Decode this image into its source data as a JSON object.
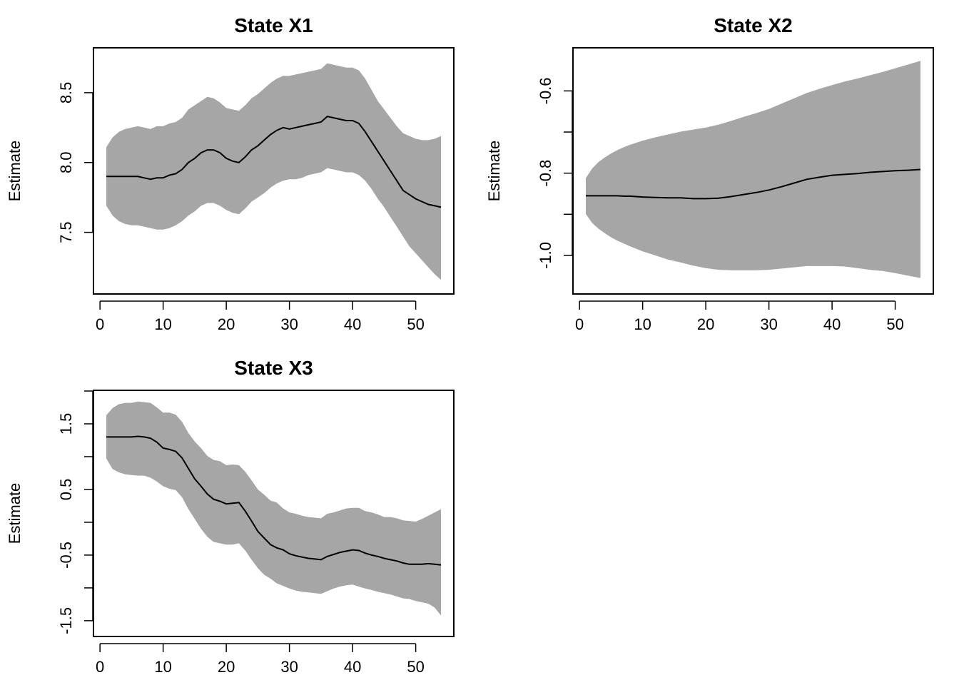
{
  "colors": {
    "band": "#a6a6a6",
    "line": "#000000",
    "frame": "#000000",
    "background": "#ffffff"
  },
  "chart_data": [
    {
      "type": "line",
      "title": "State X1",
      "xlabel": "",
      "ylabel": "Estimate",
      "xlim": [
        1,
        54
      ],
      "ylim": [
        7.12,
        8.76
      ],
      "xticks": [
        0,
        10,
        20,
        30,
        40,
        50
      ],
      "xtick_labels": [
        "0",
        "10",
        "20",
        "30",
        "40",
        "50"
      ],
      "yticks": [
        7.5,
        8.0,
        8.5
      ],
      "ytick_labels": [
        "7.5",
        "8.0",
        "8.5"
      ],
      "series": [
        {
          "kind": "band",
          "x": [
            1,
            2,
            3,
            4,
            5,
            6,
            7,
            8,
            9,
            10,
            11,
            12,
            13,
            14,
            15,
            16,
            17,
            18,
            19,
            20,
            21,
            22,
            23,
            24,
            25,
            26,
            27,
            28,
            29,
            30,
            31,
            32,
            33,
            34,
            35,
            36,
            37,
            38,
            39,
            40,
            41,
            42,
            43,
            44,
            45,
            46,
            47,
            48,
            49,
            50,
            51,
            52,
            53,
            54
          ],
          "upper": [
            8.11,
            8.18,
            8.22,
            8.24,
            8.25,
            8.26,
            8.25,
            8.24,
            8.26,
            8.26,
            8.28,
            8.29,
            8.32,
            8.38,
            8.41,
            8.44,
            8.47,
            8.46,
            8.43,
            8.39,
            8.38,
            8.37,
            8.41,
            8.46,
            8.49,
            8.53,
            8.57,
            8.6,
            8.62,
            8.62,
            8.63,
            8.64,
            8.65,
            8.66,
            8.67,
            8.71,
            8.7,
            8.69,
            8.68,
            8.68,
            8.66,
            8.6,
            8.52,
            8.44,
            8.38,
            8.32,
            8.26,
            8.21,
            8.19,
            8.17,
            8.16,
            8.16,
            8.17,
            8.19
          ],
          "lower": [
            7.69,
            7.62,
            7.58,
            7.56,
            7.55,
            7.55,
            7.54,
            7.53,
            7.52,
            7.52,
            7.53,
            7.55,
            7.58,
            7.62,
            7.65,
            7.69,
            7.71,
            7.71,
            7.69,
            7.66,
            7.64,
            7.63,
            7.67,
            7.72,
            7.75,
            7.78,
            7.82,
            7.85,
            7.87,
            7.88,
            7.88,
            7.89,
            7.91,
            7.92,
            7.93,
            7.96,
            7.95,
            7.94,
            7.93,
            7.93,
            7.91,
            7.87,
            7.81,
            7.74,
            7.68,
            7.61,
            7.54,
            7.47,
            7.4,
            7.35,
            7.3,
            7.25,
            7.2,
            7.16
          ]
        },
        {
          "kind": "line",
          "name": "",
          "x": [
            1,
            2,
            3,
            4,
            5,
            6,
            7,
            8,
            9,
            10,
            11,
            12,
            13,
            14,
            15,
            16,
            17,
            18,
            19,
            20,
            21,
            22,
            23,
            24,
            25,
            26,
            27,
            28,
            29,
            30,
            31,
            32,
            33,
            34,
            35,
            36,
            37,
            38,
            39,
            40,
            41,
            42,
            43,
            44,
            45,
            46,
            47,
            48,
            49,
            50,
            51,
            52,
            53,
            54
          ],
          "y": [
            7.9,
            7.9,
            7.9,
            7.9,
            7.9,
            7.9,
            7.89,
            7.88,
            7.89,
            7.89,
            7.91,
            7.92,
            7.95,
            8.0,
            8.03,
            8.07,
            8.09,
            8.09,
            8.07,
            8.03,
            8.01,
            8.0,
            8.04,
            8.09,
            8.12,
            8.16,
            8.2,
            8.23,
            8.25,
            8.24,
            8.25,
            8.26,
            8.27,
            8.28,
            8.29,
            8.33,
            8.32,
            8.31,
            8.3,
            8.3,
            8.28,
            8.22,
            8.15,
            8.08,
            8.01,
            7.94,
            7.87,
            7.8,
            7.77,
            7.74,
            7.72,
            7.7,
            7.69,
            7.68
          ]
        }
      ]
    },
    {
      "type": "line",
      "title": "State X2",
      "xlabel": "",
      "ylabel": "Estimate",
      "xlim": [
        1,
        54
      ],
      "ylim": [
        -1.073,
        -0.516
      ],
      "xticks": [
        0,
        10,
        20,
        30,
        40,
        50
      ],
      "xtick_labels": [
        "0",
        "10",
        "20",
        "30",
        "40",
        "50"
      ],
      "yticks": [
        -1.0,
        -0.8,
        -0.6
      ],
      "ytick_labels": [
        "-1.0",
        "-0.8",
        "-0.6"
      ],
      "yticks_unlabeled": [
        -0.9,
        -0.7
      ],
      "series": [
        {
          "kind": "band",
          "x": [
            1,
            2,
            3,
            4,
            5,
            6,
            7,
            8,
            9,
            10,
            12,
            14,
            16,
            18,
            20,
            22,
            24,
            26,
            28,
            30,
            32,
            34,
            36,
            38,
            40,
            42,
            44,
            46,
            48,
            50,
            52,
            54
          ],
          "upper": [
            -0.812,
            -0.789,
            -0.773,
            -0.762,
            -0.752,
            -0.744,
            -0.737,
            -0.731,
            -0.726,
            -0.721,
            -0.713,
            -0.706,
            -0.699,
            -0.694,
            -0.689,
            -0.682,
            -0.673,
            -0.663,
            -0.654,
            -0.644,
            -0.631,
            -0.618,
            -0.605,
            -0.595,
            -0.586,
            -0.577,
            -0.57,
            -0.562,
            -0.554,
            -0.545,
            -0.536,
            -0.527
          ],
          "lower": [
            -0.899,
            -0.921,
            -0.935,
            -0.946,
            -0.956,
            -0.964,
            -0.971,
            -0.978,
            -0.984,
            -0.99,
            -1.0,
            -1.01,
            -1.017,
            -1.025,
            -1.031,
            -1.035,
            -1.036,
            -1.036,
            -1.036,
            -1.035,
            -1.032,
            -1.029,
            -1.026,
            -1.026,
            -1.026,
            -1.027,
            -1.031,
            -1.035,
            -1.038,
            -1.043,
            -1.049,
            -1.055
          ]
        },
        {
          "kind": "line",
          "name": "",
          "x": [
            1,
            2,
            3,
            4,
            5,
            6,
            7,
            8,
            9,
            10,
            12,
            14,
            16,
            18,
            20,
            22,
            24,
            26,
            28,
            30,
            32,
            34,
            36,
            38,
            40,
            42,
            44,
            46,
            48,
            50,
            52,
            54
          ],
          "y": [
            -0.855,
            -0.855,
            -0.855,
            -0.855,
            -0.855,
            -0.855,
            -0.856,
            -0.856,
            -0.857,
            -0.858,
            -0.859,
            -0.86,
            -0.86,
            -0.862,
            -0.862,
            -0.861,
            -0.857,
            -0.852,
            -0.847,
            -0.841,
            -0.833,
            -0.824,
            -0.815,
            -0.81,
            -0.805,
            -0.803,
            -0.801,
            -0.798,
            -0.796,
            -0.794,
            -0.793,
            -0.791
          ]
        }
      ]
    },
    {
      "type": "line",
      "title": "State X3",
      "xlabel": "",
      "ylabel": "Estimate",
      "xlim": [
        1,
        54
      ],
      "ylim": [
        -1.61,
        2.0
      ],
      "xticks": [
        0,
        10,
        20,
        30,
        40,
        50
      ],
      "xtick_labels": [
        "0",
        "10",
        "20",
        "30",
        "40",
        "50"
      ],
      "yticks": [
        -1.5,
        -0.5,
        0.5,
        1.5
      ],
      "ytick_labels": [
        "-1.5",
        "-0.5",
        "0.5",
        "1.5"
      ],
      "yticks_unlabeled": [
        -1.0,
        0.0,
        1.0,
        2.0
      ],
      "series": [
        {
          "kind": "band",
          "x": [
            1,
            2,
            3,
            4,
            5,
            6,
            7,
            8,
            9,
            10,
            11,
            12,
            13,
            14,
            15,
            16,
            17,
            18,
            19,
            20,
            21,
            22,
            23,
            24,
            25,
            26,
            27,
            28,
            29,
            30,
            31,
            32,
            33,
            34,
            35,
            36,
            37,
            38,
            39,
            40,
            41,
            42,
            43,
            44,
            45,
            46,
            47,
            48,
            49,
            50,
            51,
            52,
            53,
            54
          ],
          "upper": [
            1.63,
            1.74,
            1.8,
            1.82,
            1.82,
            1.84,
            1.83,
            1.82,
            1.75,
            1.67,
            1.67,
            1.64,
            1.53,
            1.36,
            1.23,
            1.13,
            1.01,
            0.95,
            0.93,
            0.87,
            0.88,
            0.87,
            0.77,
            0.64,
            0.5,
            0.42,
            0.33,
            0.3,
            0.21,
            0.15,
            0.13,
            0.1,
            0.08,
            0.07,
            0.06,
            0.13,
            0.15,
            0.18,
            0.21,
            0.22,
            0.22,
            0.17,
            0.15,
            0.12,
            0.08,
            0.08,
            0.06,
            0.03,
            0.02,
            0.01,
            0.05,
            0.1,
            0.15,
            0.2
          ],
          "lower": [
            0.97,
            0.81,
            0.76,
            0.73,
            0.72,
            0.71,
            0.71,
            0.68,
            0.62,
            0.55,
            0.51,
            0.49,
            0.38,
            0.2,
            0.05,
            -0.1,
            -0.22,
            -0.3,
            -0.32,
            -0.34,
            -0.34,
            -0.32,
            -0.43,
            -0.57,
            -0.7,
            -0.8,
            -0.86,
            -0.93,
            -0.97,
            -1.01,
            -1.04,
            -1.06,
            -1.07,
            -1.08,
            -1.09,
            -1.05,
            -1.01,
            -0.98,
            -0.96,
            -0.95,
            -0.98,
            -1.01,
            -1.03,
            -1.06,
            -1.08,
            -1.1,
            -1.13,
            -1.16,
            -1.17,
            -1.2,
            -1.22,
            -1.24,
            -1.3,
            -1.42
          ]
        },
        {
          "kind": "line",
          "name": "",
          "x": [
            1,
            2,
            3,
            4,
            5,
            6,
            7,
            8,
            9,
            10,
            11,
            12,
            13,
            14,
            15,
            16,
            17,
            18,
            19,
            20,
            21,
            22,
            23,
            24,
            25,
            26,
            27,
            28,
            29,
            30,
            31,
            32,
            33,
            34,
            35,
            36,
            37,
            38,
            39,
            40,
            41,
            42,
            43,
            44,
            45,
            46,
            47,
            48,
            49,
            50,
            51,
            52,
            53,
            54
          ],
          "y": [
            1.3,
            1.3,
            1.3,
            1.3,
            1.3,
            1.31,
            1.3,
            1.28,
            1.22,
            1.13,
            1.11,
            1.08,
            0.98,
            0.82,
            0.66,
            0.55,
            0.43,
            0.35,
            0.32,
            0.28,
            0.29,
            0.3,
            0.17,
            0.02,
            -0.14,
            -0.24,
            -0.34,
            -0.39,
            -0.42,
            -0.48,
            -0.51,
            -0.53,
            -0.55,
            -0.56,
            -0.57,
            -0.52,
            -0.49,
            -0.46,
            -0.44,
            -0.42,
            -0.43,
            -0.47,
            -0.5,
            -0.52,
            -0.55,
            -0.57,
            -0.59,
            -0.62,
            -0.64,
            -0.64,
            -0.64,
            -0.63,
            -0.64,
            -0.65
          ]
        }
      ]
    }
  ]
}
